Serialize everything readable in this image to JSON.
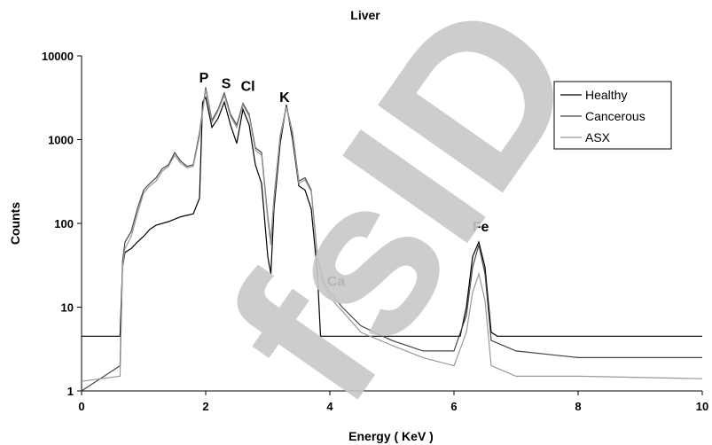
{
  "chart_data": {
    "type": "line",
    "title": "Liver",
    "xlabel": "Energy ( KeV )",
    "ylabel": "Counts",
    "x_scale": "linear",
    "y_scale": "log",
    "xlim": [
      0,
      10
    ],
    "ylim": [
      1,
      10000
    ],
    "x_ticks": [
      "0",
      "2",
      "4",
      "6",
      "8",
      "10"
    ],
    "y_ticks": [
      "1",
      "10",
      "100",
      "1000",
      "10000"
    ],
    "grid": false,
    "legend_position": "top-right",
    "legend": [
      "Healthy",
      "Cancerous",
      "ASX"
    ],
    "series": [
      {
        "name": "Healthy",
        "color": "#000000",
        "points": [
          [
            0,
            4.5
          ],
          [
            0.62,
            4.5
          ],
          [
            0.66,
            30
          ],
          [
            0.7,
            45
          ],
          [
            0.8,
            50
          ],
          [
            0.9,
            60
          ],
          [
            1.0,
            70
          ],
          [
            1.1,
            85
          ],
          [
            1.2,
            95
          ],
          [
            1.4,
            105
          ],
          [
            1.6,
            120
          ],
          [
            1.8,
            130
          ],
          [
            1.9,
            200
          ],
          [
            1.95,
            2800
          ],
          [
            2.0,
            3200
          ],
          [
            2.1,
            1400
          ],
          [
            2.2,
            1800
          ],
          [
            2.3,
            2800
          ],
          [
            2.4,
            1500
          ],
          [
            2.5,
            900
          ],
          [
            2.6,
            2300
          ],
          [
            2.7,
            1500
          ],
          [
            2.8,
            500
          ],
          [
            2.9,
            300
          ],
          [
            3.0,
            40
          ],
          [
            3.05,
            25
          ],
          [
            3.1,
            150
          ],
          [
            3.2,
            900
          ],
          [
            3.3,
            2600
          ],
          [
            3.4,
            1000
          ],
          [
            3.5,
            280
          ],
          [
            3.6,
            250
          ],
          [
            3.7,
            150
          ],
          [
            3.8,
            25
          ],
          [
            3.85,
            4.5
          ],
          [
            6.1,
            4.5
          ],
          [
            6.2,
            10
          ],
          [
            6.3,
            40
          ],
          [
            6.4,
            60
          ],
          [
            6.5,
            30
          ],
          [
            6.6,
            5
          ],
          [
            6.7,
            4.5
          ],
          [
            10,
            4.5
          ]
        ]
      },
      {
        "name": "Cancerous",
        "color": "#444444",
        "points": [
          [
            0,
            1
          ],
          [
            0.62,
            2
          ],
          [
            0.66,
            35
          ],
          [
            0.7,
            60
          ],
          [
            0.8,
            80
          ],
          [
            0.9,
            150
          ],
          [
            1.0,
            250
          ],
          [
            1.1,
            300
          ],
          [
            1.2,
            350
          ],
          [
            1.3,
            450
          ],
          [
            1.4,
            500
          ],
          [
            1.5,
            700
          ],
          [
            1.6,
            550
          ],
          [
            1.7,
            480
          ],
          [
            1.8,
            500
          ],
          [
            1.9,
            1200
          ],
          [
            2.0,
            4200
          ],
          [
            2.1,
            1700
          ],
          [
            2.2,
            2300
          ],
          [
            2.3,
            3600
          ],
          [
            2.4,
            2000
          ],
          [
            2.5,
            1500
          ],
          [
            2.6,
            2700
          ],
          [
            2.7,
            2000
          ],
          [
            2.8,
            800
          ],
          [
            2.9,
            700
          ],
          [
            3.0,
            120
          ],
          [
            3.05,
            60
          ],
          [
            3.1,
            200
          ],
          [
            3.2,
            1100
          ],
          [
            3.3,
            2500
          ],
          [
            3.4,
            1200
          ],
          [
            3.5,
            320
          ],
          [
            3.6,
            350
          ],
          [
            3.7,
            250
          ],
          [
            3.8,
            40
          ],
          [
            3.9,
            20
          ],
          [
            4.0,
            15
          ],
          [
            4.2,
            10
          ],
          [
            4.5,
            6
          ],
          [
            5.0,
            4
          ],
          [
            5.5,
            3
          ],
          [
            6.0,
            3
          ],
          [
            6.2,
            8
          ],
          [
            6.3,
            30
          ],
          [
            6.4,
            55
          ],
          [
            6.5,
            25
          ],
          [
            6.6,
            4
          ],
          [
            7.0,
            3
          ],
          [
            8.0,
            2.5
          ],
          [
            10,
            2.5
          ]
        ]
      },
      {
        "name": "ASX",
        "color": "#999999",
        "points": [
          [
            0,
            1.3
          ],
          [
            0.62,
            1.5
          ],
          [
            0.66,
            30
          ],
          [
            0.7,
            50
          ],
          [
            0.8,
            70
          ],
          [
            0.9,
            130
          ],
          [
            1.0,
            230
          ],
          [
            1.1,
            280
          ],
          [
            1.2,
            320
          ],
          [
            1.3,
            420
          ],
          [
            1.4,
            480
          ],
          [
            1.5,
            650
          ],
          [
            1.6,
            520
          ],
          [
            1.7,
            460
          ],
          [
            1.8,
            480
          ],
          [
            1.9,
            1100
          ],
          [
            2.0,
            4000
          ],
          [
            2.1,
            1600
          ],
          [
            2.2,
            2200
          ],
          [
            2.3,
            3400
          ],
          [
            2.4,
            1900
          ],
          [
            2.5,
            1400
          ],
          [
            2.6,
            2600
          ],
          [
            2.7,
            1900
          ],
          [
            2.8,
            750
          ],
          [
            2.9,
            650
          ],
          [
            3.0,
            110
          ],
          [
            3.05,
            55
          ],
          [
            3.1,
            190
          ],
          [
            3.2,
            1050
          ],
          [
            3.3,
            2450
          ],
          [
            3.4,
            1150
          ],
          [
            3.5,
            300
          ],
          [
            3.6,
            330
          ],
          [
            3.7,
            240
          ],
          [
            3.8,
            38
          ],
          [
            3.9,
            18
          ],
          [
            4.0,
            13
          ],
          [
            4.2,
            9
          ],
          [
            4.5,
            5
          ],
          [
            5.0,
            3.5
          ],
          [
            5.5,
            2.5
          ],
          [
            6.0,
            2
          ],
          [
            6.2,
            5
          ],
          [
            6.3,
            15
          ],
          [
            6.4,
            25
          ],
          [
            6.5,
            12
          ],
          [
            6.6,
            2
          ],
          [
            7.0,
            1.5
          ],
          [
            8.0,
            1.5
          ],
          [
            10,
            1.4
          ]
        ]
      }
    ],
    "annotations": [
      {
        "text": "P",
        "x": 1.97,
        "y": 4800
      },
      {
        "text": "S",
        "x": 2.33,
        "y": 4100
      },
      {
        "text": "Cl",
        "x": 2.68,
        "y": 3800
      },
      {
        "text": "K",
        "x": 3.27,
        "y": 2800
      },
      {
        "text": "Ca",
        "x": 4.1,
        "y": 18
      },
      {
        "text": "Fe",
        "x": 6.43,
        "y": 80
      }
    ]
  },
  "watermark": {
    "text": "fsID",
    "color": "#c8c8c8"
  }
}
